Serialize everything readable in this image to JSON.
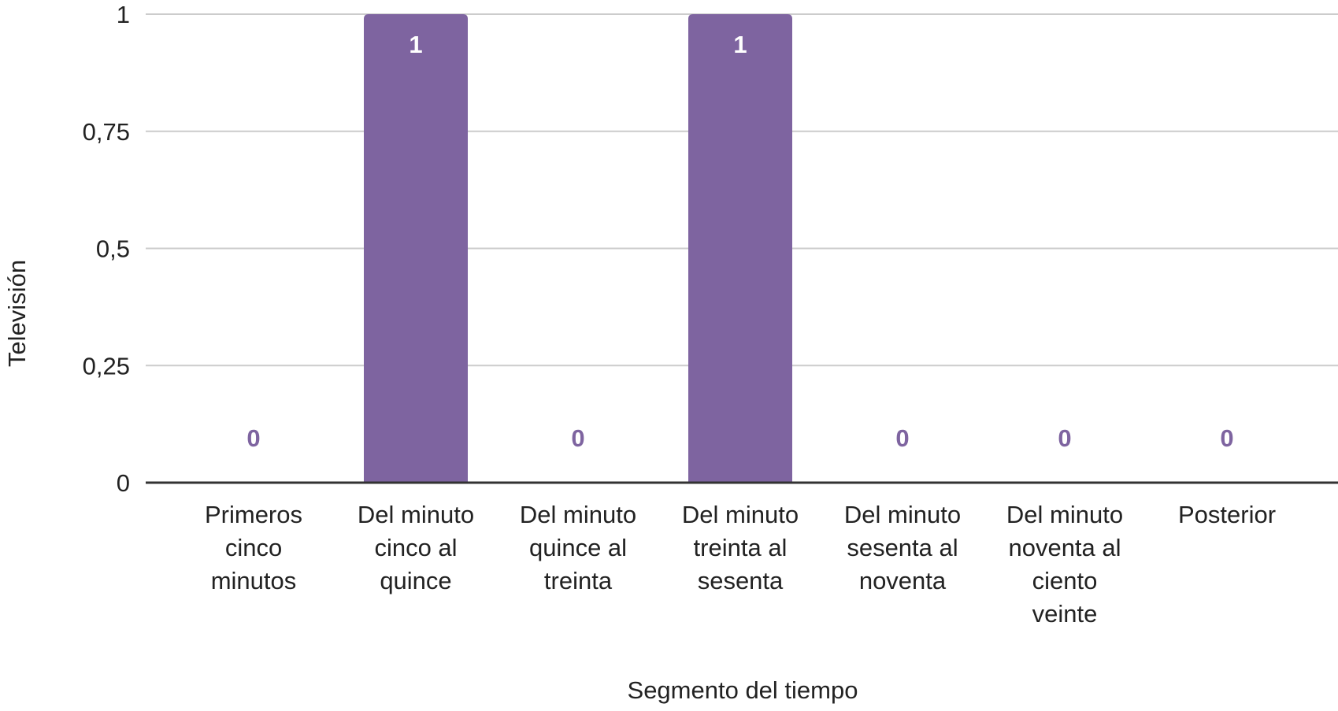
{
  "chart_data": {
    "type": "bar",
    "title": "",
    "xlabel": "Segmento del tiempo",
    "ylabel": "Televisión",
    "categories": [
      "Primeros cinco minutos",
      "Del minuto cinco al quince",
      "Del minuto quince al treinta",
      "Del minuto treinta al sesenta",
      "Del minuto sesenta al noventa",
      "Del minuto noventa al ciento veinte",
      "Posterior"
    ],
    "category_lines": [
      [
        "Primeros",
        "cinco",
        "minutos"
      ],
      [
        "Del minuto",
        "cinco al",
        "quince"
      ],
      [
        "Del minuto",
        "quince al",
        "treinta"
      ],
      [
        "Del minuto",
        "treinta al",
        "sesenta"
      ],
      [
        "Del minuto",
        "sesenta al",
        "noventa"
      ],
      [
        "Del minuto",
        "noventa al",
        "ciento",
        "veinte"
      ],
      [
        "Posterior"
      ]
    ],
    "series": [
      {
        "values": [
          0,
          1,
          0,
          1,
          0,
          0,
          0
        ],
        "color": "#7e64a0"
      }
    ],
    "data_labels": [
      "0",
      "1",
      "0",
      "1",
      "0",
      "0",
      "0"
    ],
    "ylim": [
      0,
      1
    ],
    "yticks": [
      0,
      0.25,
      0.5,
      0.75,
      1
    ],
    "ytick_labels": [
      "0",
      "0,25",
      "0,5",
      "0,75",
      "1"
    ],
    "grid": true,
    "legend": "none",
    "colors": {
      "bar": "#7e64a0",
      "label_inside": "#ffffff",
      "label_outside": "#7e64a0",
      "grid": "#cccccc",
      "axis": "#333333",
      "text": "#222222"
    }
  }
}
